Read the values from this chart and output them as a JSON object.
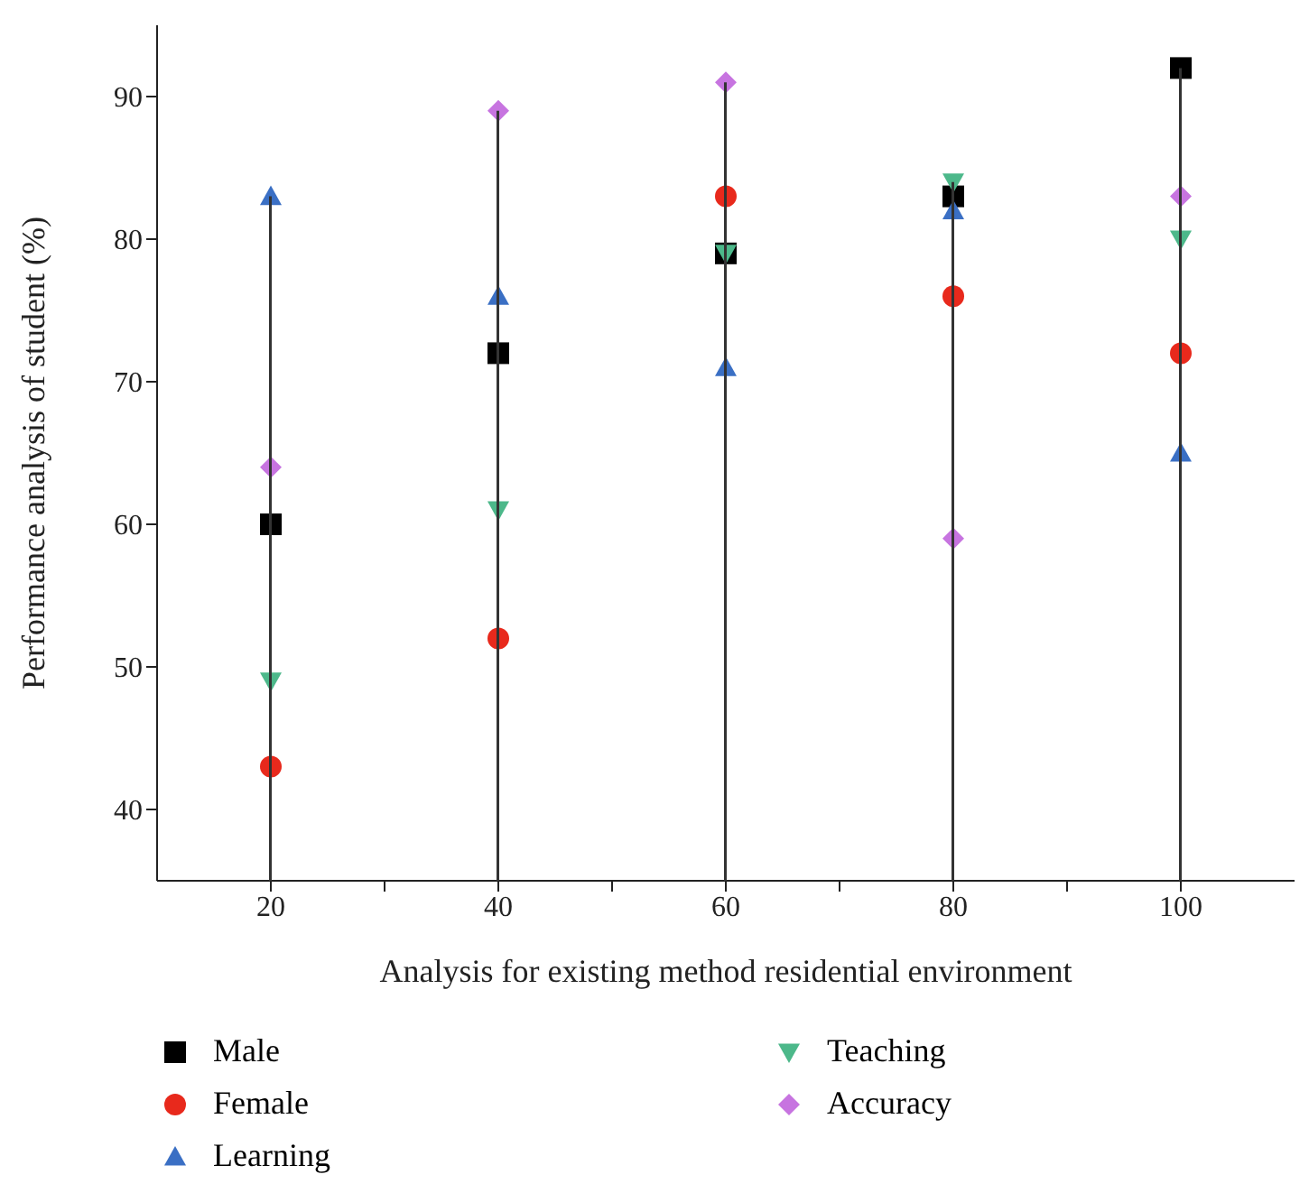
{
  "chart_data": {
    "type": "scatter",
    "xlabel": "Analysis for existing method residential environment",
    "ylabel": "Performance analysis of student (%)",
    "x": [
      20,
      40,
      60,
      80,
      100
    ],
    "series": [
      {
        "type": "bar",
        "color": "#333333",
        "values": [
          83,
          89,
          91,
          84,
          92
        ]
      },
      {
        "name": "Male",
        "color": "#000000",
        "marker": "square",
        "values": [
          60,
          72,
          79,
          83,
          92
        ]
      },
      {
        "name": "Female",
        "color": "#e8291c",
        "marker": "circle",
        "values": [
          43,
          52,
          83,
          76,
          72
        ]
      },
      {
        "name": "Learning",
        "color": "#3a6fc4",
        "marker": "triangle",
        "values": [
          83,
          76,
          71,
          82,
          65
        ]
      },
      {
        "name": "Teaching",
        "color": "#4cb88a",
        "marker": "triangle-down",
        "values": [
          49,
          61,
          79,
          84,
          80
        ]
      },
      {
        "name": "Accuracy",
        "color": "#c774e0",
        "marker": "diamond",
        "values": [
          64,
          89,
          91,
          59,
          83
        ]
      }
    ],
    "xlim": [
      10,
      110
    ],
    "xticks": [
      20,
      {
        "value": 30,
        "label": null
      },
      40,
      {
        "value": 50,
        "label": null
      },
      60,
      {
        "value": 70,
        "label": null
      },
      80,
      {
        "value": 90,
        "label": null
      },
      100
    ],
    "ylim": [
      35,
      95
    ],
    "yticks": [
      40,
      50,
      60,
      70,
      80,
      90
    ],
    "legend": "bottom"
  }
}
